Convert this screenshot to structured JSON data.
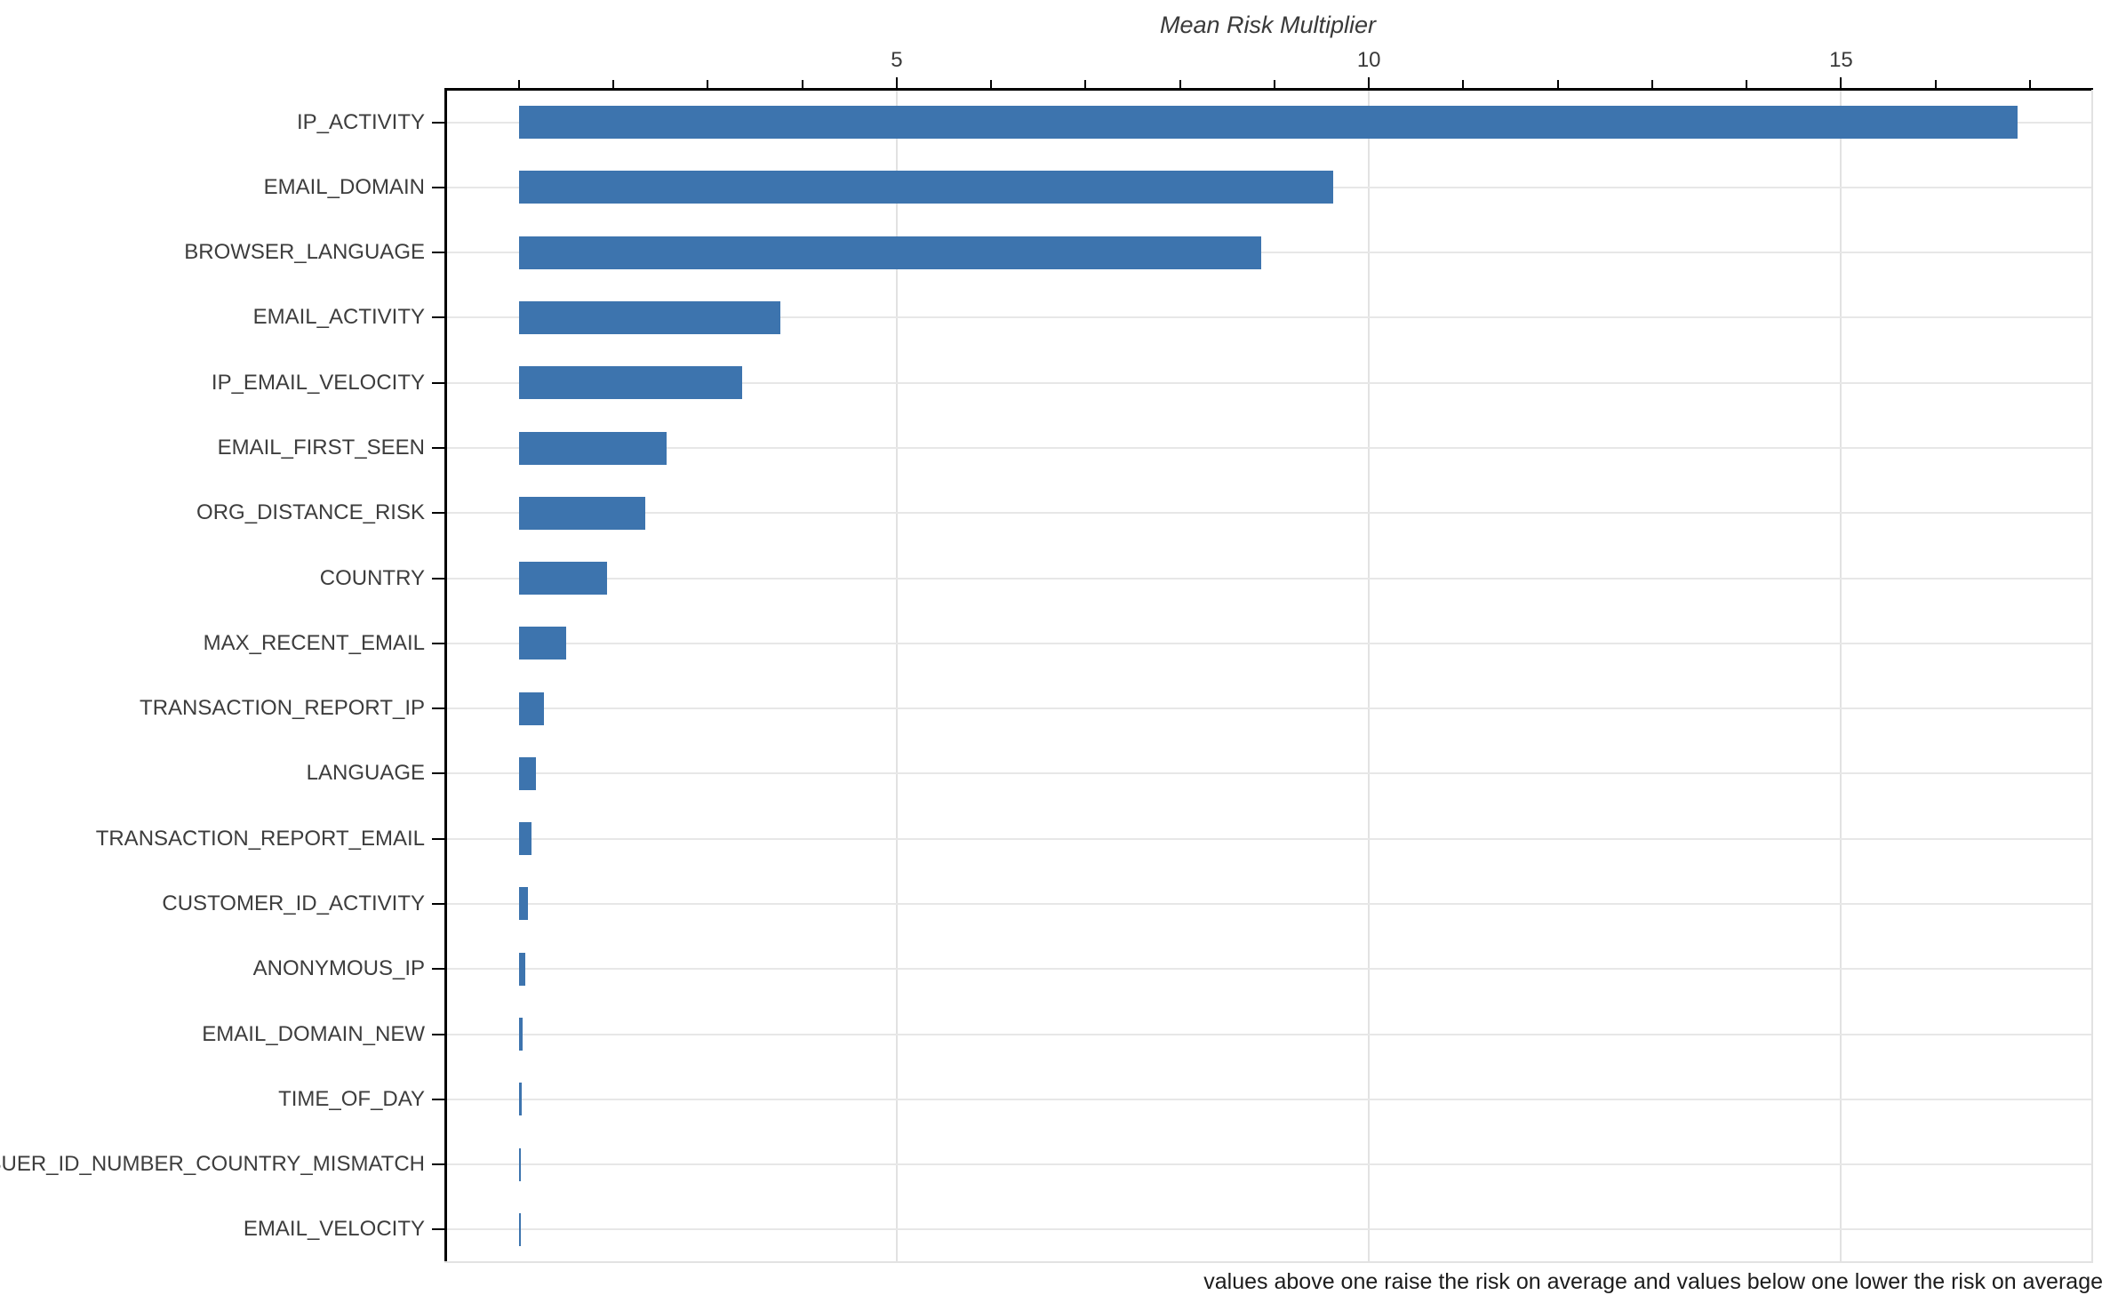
{
  "chart_data": {
    "type": "bar",
    "orientation": "horizontal",
    "title": "Mean Risk Multiplier",
    "xlabel": "Mean Risk Multiplier",
    "ylabel": "",
    "categories": [
      "IP_ACTIVITY",
      "EMAIL_DOMAIN",
      "BROWSER_LANGUAGE",
      "EMAIL_ACTIVITY",
      "IP_EMAIL_VELOCITY",
      "EMAIL_FIRST_SEEN",
      "ORG_DISTANCE_RISK",
      "COUNTRY",
      "MAX_RECENT_EMAIL",
      "TRANSACTION_REPORT_IP",
      "LANGUAGE",
      "TRANSACTION_REPORT_EMAIL",
      "CUSTOMER_ID_ACTIVITY",
      "ANONYMOUS_IP",
      "EMAIL_DOMAIN_NEW",
      "TIME_OF_DAY",
      "ISSUER_ID_NUMBER_COUNTRY_MISMATCH",
      "EMAIL_VELOCITY"
    ],
    "values": [
      16.87,
      9.62,
      8.86,
      3.77,
      3.36,
      2.56,
      2.34,
      1.93,
      1.5,
      1.26,
      1.18,
      1.13,
      1.09,
      1.07,
      1.04,
      1.03,
      1.02,
      1.015
    ],
    "bar_baseline": 1,
    "xlim": [
      0.21,
      17.65
    ],
    "x_major_ticks": [
      5,
      10,
      15
    ],
    "x_minor_ticks": [
      1,
      2,
      3,
      4,
      6,
      7,
      8,
      9,
      11,
      12,
      13,
      14,
      16,
      17
    ],
    "grid": "major-vertical and per-category horizontal",
    "legend": "none",
    "caption": "values above one raise the risk on average and values below one lower the risk on average",
    "colors": {
      "bar": "#3d74ae",
      "axis_line": "#000000",
      "gridline": "#e5e5e5",
      "tick_label": "#3a3a3a",
      "category_label": "#3d3d3d",
      "caption_text": "#1c1c1c",
      "background": "#ffffff"
    }
  }
}
